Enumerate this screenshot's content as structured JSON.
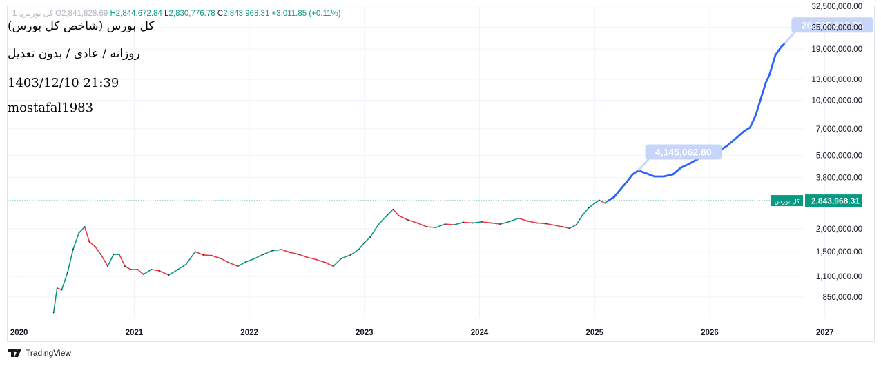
{
  "legend": {
    "prefix": "1 ,کل بورس",
    "open_label": "O",
    "open": "2,841,828.69",
    "high_label": "H",
    "high": "2,844,672.84",
    "low_label": "L",
    "low": "2,830,776.78",
    "close_label": "C",
    "close": "2,843,968.31",
    "change": "+3,011.85 (+0.11%)"
  },
  "notes": {
    "title": "کل بورس (شاخص کل بورس)",
    "subtitle": "روزانه / عادی / بدون تعدیل",
    "datetime": "1403/12/10 21:39",
    "author": "mostafal1983"
  },
  "footer": {
    "brand": "TradingView",
    "icon": "tradingview-logo-icon"
  },
  "colors": {
    "up": "#089981",
    "down": "#f23645",
    "projection": "#2962ff",
    "projection_label_bg": "#c7d5fb",
    "last_price_bg": "#089981",
    "grid": "#f0f3fa"
  },
  "chart_data": {
    "type": "line",
    "y_scale": "log",
    "x_ticks": [
      "2020",
      "2021",
      "2022",
      "2023",
      "2024",
      "2025",
      "2026",
      "2027"
    ],
    "y_ticks": [
      "32,500,000.00",
      "25,000,000.00",
      "19,000,000.00",
      "13,000,000.00",
      "10,000,000.00",
      "7,000,000.00",
      "5,000,000.00",
      "3,800,000.00",
      "2,000,000.00",
      "1,500,000.00",
      "1,100,000.00",
      "850,000.00"
    ],
    "ylim": [
      650000,
      32500000
    ],
    "xlim": [
      2019.9,
      2027.35
    ],
    "last_price": {
      "label": "کل بورس",
      "value": 2843968.31,
      "value_text": "2,843,968.31"
    },
    "series": [
      {
        "role": "price",
        "points": [
          [
            2020.3,
            700000
          ],
          [
            2020.33,
            950000
          ],
          [
            2020.37,
            930000
          ],
          [
            2020.42,
            1150000
          ],
          [
            2020.47,
            1550000
          ],
          [
            2020.52,
            1900000
          ],
          [
            2020.57,
            2050000
          ],
          [
            2020.61,
            1700000
          ],
          [
            2020.66,
            1600000
          ],
          [
            2020.71,
            1450000
          ],
          [
            2020.77,
            1250000
          ],
          [
            2020.82,
            1450000
          ],
          [
            2020.87,
            1450000
          ],
          [
            2020.92,
            1250000
          ],
          [
            2020.97,
            1200000
          ],
          [
            2021.03,
            1200000
          ],
          [
            2021.08,
            1130000
          ],
          [
            2021.15,
            1200000
          ],
          [
            2021.22,
            1180000
          ],
          [
            2021.3,
            1120000
          ],
          [
            2021.38,
            1200000
          ],
          [
            2021.45,
            1280000
          ],
          [
            2021.53,
            1500000
          ],
          [
            2021.6,
            1440000
          ],
          [
            2021.67,
            1430000
          ],
          [
            2021.75,
            1380000
          ],
          [
            2021.82,
            1310000
          ],
          [
            2021.9,
            1250000
          ],
          [
            2021.97,
            1320000
          ],
          [
            2022.05,
            1380000
          ],
          [
            2022.12,
            1450000
          ],
          [
            2022.2,
            1520000
          ],
          [
            2022.28,
            1540000
          ],
          [
            2022.35,
            1490000
          ],
          [
            2022.43,
            1450000
          ],
          [
            2022.5,
            1400000
          ],
          [
            2022.58,
            1360000
          ],
          [
            2022.66,
            1310000
          ],
          [
            2022.73,
            1250000
          ],
          [
            2022.8,
            1380000
          ],
          [
            2022.88,
            1440000
          ],
          [
            2022.95,
            1540000
          ],
          [
            2023.0,
            1680000
          ],
          [
            2023.05,
            1800000
          ],
          [
            2023.12,
            2100000
          ],
          [
            2023.2,
            2380000
          ],
          [
            2023.25,
            2550000
          ],
          [
            2023.3,
            2350000
          ],
          [
            2023.38,
            2230000
          ],
          [
            2023.46,
            2150000
          ],
          [
            2023.54,
            2050000
          ],
          [
            2023.62,
            2030000
          ],
          [
            2023.7,
            2120000
          ],
          [
            2023.78,
            2100000
          ],
          [
            2023.86,
            2170000
          ],
          [
            2023.94,
            2150000
          ],
          [
            2024.02,
            2180000
          ],
          [
            2024.1,
            2150000
          ],
          [
            2024.18,
            2120000
          ],
          [
            2024.26,
            2190000
          ],
          [
            2024.34,
            2280000
          ],
          [
            2024.42,
            2200000
          ],
          [
            2024.5,
            2150000
          ],
          [
            2024.58,
            2130000
          ],
          [
            2024.65,
            2090000
          ],
          [
            2024.72,
            2050000
          ],
          [
            2024.78,
            2010000
          ],
          [
            2024.84,
            2100000
          ],
          [
            2024.9,
            2400000
          ],
          [
            2024.95,
            2600000
          ],
          [
            2025.0,
            2750000
          ],
          [
            2025.04,
            2860000
          ],
          [
            2025.09,
            2760000
          ],
          [
            2025.12,
            2843968
          ]
        ]
      },
      {
        "role": "projection",
        "points": [
          [
            2025.12,
            2843968
          ],
          [
            2025.17,
            2980000
          ],
          [
            2025.22,
            3250000
          ],
          [
            2025.28,
            3600000
          ],
          [
            2025.33,
            3950000
          ],
          [
            2025.38,
            4145000
          ],
          [
            2025.45,
            4000000
          ],
          [
            2025.52,
            3850000
          ],
          [
            2025.6,
            3850000
          ],
          [
            2025.68,
            3950000
          ],
          [
            2025.75,
            4300000
          ],
          [
            2025.82,
            4500000
          ],
          [
            2025.9,
            4800000
          ],
          [
            2025.95,
            5100000
          ],
          [
            2026.02,
            5500000
          ],
          [
            2026.1,
            5400000
          ],
          [
            2026.15,
            5650000
          ],
          [
            2026.22,
            6150000
          ],
          [
            2026.3,
            6800000
          ],
          [
            2026.35,
            7100000
          ],
          [
            2026.4,
            8300000
          ],
          [
            2026.45,
            10500000
          ],
          [
            2026.49,
            12600000
          ],
          [
            2026.52,
            13800000
          ],
          [
            2026.57,
            17600000
          ],
          [
            2026.62,
            19500000
          ],
          [
            2026.65,
            20335812
          ]
        ]
      }
    ],
    "annotations": [
      {
        "text": "4,145,062.80",
        "x": 2025.38,
        "y": 4145062.8
      },
      {
        "text": "20,335,812.36",
        "x": 2026.65,
        "y": 20335812.36
      }
    ]
  }
}
